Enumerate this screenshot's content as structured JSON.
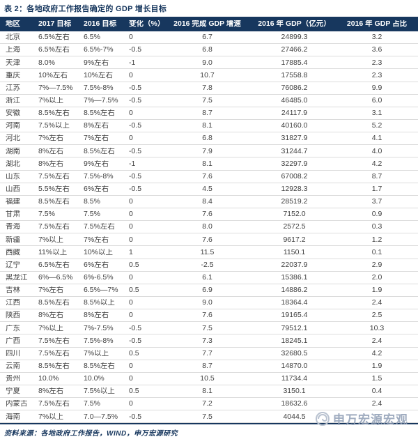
{
  "title": "表 2：各地政府工作报告确定的 GDP 增长目标",
  "table": {
    "columns": [
      "地区",
      "2017 目标",
      "2016 目标",
      "变化（%）",
      "2016 完成 GDP 增速",
      "2016 年 GDP（亿元）",
      "2016 年 GDP 占比"
    ],
    "rows": [
      [
        "北京",
        "6.5%左右",
        "6.5%",
        "0",
        "6.7",
        "24899.3",
        "3.2"
      ],
      [
        "上海",
        "6.5%左右",
        "6.5%-7%",
        "-0.5",
        "6.8",
        "27466.2",
        "3.6"
      ],
      [
        "天津",
        "8.0%",
        "9%左右",
        "-1",
        "9.0",
        "17885.4",
        "2.3"
      ],
      [
        "重庆",
        "10%左右",
        "10%左右",
        "0",
        "10.7",
        "17558.8",
        "2.3"
      ],
      [
        "江苏",
        "7%—7.5%",
        "7.5%-8%",
        "-0.5",
        "7.8",
        "76086.2",
        "9.9"
      ],
      [
        "浙江",
        "7%以上",
        "7%—7.5%",
        "-0.5",
        "7.5",
        "46485.0",
        "6.0"
      ],
      [
        "安徽",
        "8.5%左右",
        "8.5%左右",
        "0",
        "8.7",
        "24117.9",
        "3.1"
      ],
      [
        "河南",
        "7.5%以上",
        "8%左右",
        "-0.5",
        "8.1",
        "40160.0",
        "5.2"
      ],
      [
        "河北",
        "7%左右",
        "7%左右",
        "0",
        "6.8",
        "31827.9",
        "4.1"
      ],
      [
        "湖南",
        "8%左右",
        "8.5%左右",
        "-0.5",
        "7.9",
        "31244.7",
        "4.0"
      ],
      [
        "湖北",
        "8%左右",
        "9%左右",
        "-1",
        "8.1",
        "32297.9",
        "4.2"
      ],
      [
        "山东",
        "7.5%左右",
        "7.5%-8%",
        "-0.5",
        "7.6",
        "67008.2",
        "8.7"
      ],
      [
        "山西",
        "5.5%左右",
        "6%左右",
        "-0.5",
        "4.5",
        "12928.3",
        "1.7"
      ],
      [
        "福建",
        "8.5%左右",
        "8.5%",
        "0",
        "8.4",
        "28519.2",
        "3.7"
      ],
      [
        "甘肃",
        "7.5%",
        "7.5%",
        "0",
        "7.6",
        "7152.0",
        "0.9"
      ],
      [
        "青海",
        "7.5%左右",
        "7.5%左右",
        "0",
        "8.0",
        "2572.5",
        "0.3"
      ],
      [
        "新疆",
        "7%以上",
        "7%左右",
        "0",
        "7.6",
        "9617.2",
        "1.2"
      ],
      [
        "西藏",
        "11%以上",
        "10%以上",
        "1",
        "11.5",
        "1150.1",
        "0.1"
      ],
      [
        "辽宁",
        "6.5%左右",
        "6%左右",
        "0.5",
        "-2.5",
        "22037.9",
        "2.9"
      ],
      [
        "黑龙江",
        "6%—6.5%",
        "6%-6.5%",
        "0",
        "6.1",
        "15386.1",
        "2.0"
      ],
      [
        "吉林",
        "7%左右",
        "6.5%—7%",
        "0.5",
        "6.9",
        "14886.2",
        "1.9"
      ],
      [
        "江西",
        "8.5%左右",
        "8.5%以上",
        "0",
        "9.0",
        "18364.4",
        "2.4"
      ],
      [
        "陕西",
        "8%左右",
        "8%左右",
        "0",
        "7.6",
        "19165.4",
        "2.5"
      ],
      [
        "广东",
        "7%以上",
        "7%-7.5%",
        "-0.5",
        "7.5",
        "79512.1",
        "10.3"
      ],
      [
        "广西",
        "7.5%左右",
        "7.5%-8%",
        "-0.5",
        "7.3",
        "18245.1",
        "2.4"
      ],
      [
        "四川",
        "7.5%左右",
        "7%以上",
        "0.5",
        "7.7",
        "32680.5",
        "4.2"
      ],
      [
        "云南",
        "8.5%左右",
        "8.5%左右",
        "0",
        "8.7",
        "14870.0",
        "1.9"
      ],
      [
        "贵州",
        "10.0%",
        "10.0%",
        "0",
        "10.5",
        "11734.4",
        "1.5"
      ],
      [
        "宁夏",
        "8%左右",
        "7.5%以上",
        "0.5",
        "8.1",
        "3150.1",
        "0.4"
      ],
      [
        "内蒙古",
        "7.5%左右",
        "7.5%",
        "0",
        "7.2",
        "18632.6",
        "2.4"
      ],
      [
        "海南",
        "7%以上",
        "7.0—7.5%",
        "-0.5",
        "7.5",
        "4044.5",
        ""
      ]
    ]
  },
  "footer": {
    "source": "资料来源：各地政府工作报告，WIND，申万宏源研究"
  },
  "watermark": {
    "text": "申万宏源宏观",
    "icon": "swirl-logo-icon"
  },
  "colors": {
    "header_bg": "#17375E",
    "title_text": "#17375E",
    "body_text": "#3F3F3F",
    "row_line": "#DCDCDC",
    "watermark_text": "#8E9DB4"
  }
}
